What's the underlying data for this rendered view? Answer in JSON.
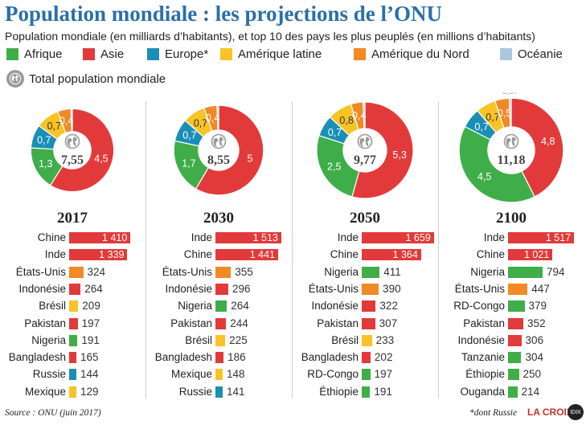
{
  "title": "Population mondiale : les projections de l’ONU",
  "subtitle": "Population mondiale (en milliards d’habitants), et top 10 des pays les plus peuplés (en millions d’habitants)",
  "legend": {
    "items": [
      {
        "label": "Afrique",
        "color": "#3fae49"
      },
      {
        "label": "Asie",
        "color": "#e23a3a"
      },
      {
        "label": "Europe*",
        "color": "#1a8fb5"
      },
      {
        "label": "Amérique latine",
        "color": "#f7c325"
      },
      {
        "label": "Amérique du Nord",
        "color": "#f08a24"
      },
      {
        "label": "Océanie",
        "color": "#a9c8de"
      }
    ],
    "total_label": "Total population mondiale",
    "total_icon": "globe-icon"
  },
  "chart_data": [
    {
      "type": "pie",
      "year": "2017",
      "total": "7,55",
      "slices": [
        {
          "region": "Asie",
          "value": 4.5,
          "label": "4,5"
        },
        {
          "region": "Afrique",
          "value": 1.3,
          "label": "1,3"
        },
        {
          "region": "Europe*",
          "value": 0.7,
          "label": "0,7"
        },
        {
          "region": "Amérique latine",
          "value": 0.7,
          "label": "0,7"
        },
        {
          "region": "Amérique du Nord",
          "value": 0.4,
          "label": "0,4"
        },
        {
          "region": "Océanie",
          "value": 0.04,
          "label": ""
        }
      ],
      "countries": [
        {
          "name": "Chine",
          "value": 1410,
          "label": "1 410",
          "region": "Asie"
        },
        {
          "name": "Inde",
          "value": 1339,
          "label": "1 339",
          "region": "Asie"
        },
        {
          "name": "États-Unis",
          "value": 324,
          "label": "324",
          "region": "Amérique du Nord"
        },
        {
          "name": "Indonésie",
          "value": 264,
          "label": "264",
          "region": "Asie"
        },
        {
          "name": "Brésil",
          "value": 209,
          "label": "209",
          "region": "Amérique latine"
        },
        {
          "name": "Pakistan",
          "value": 197,
          "label": "197",
          "region": "Asie"
        },
        {
          "name": "Nigeria",
          "value": 191,
          "label": "191",
          "region": "Afrique"
        },
        {
          "name": "Bangladesh",
          "value": 165,
          "label": "165",
          "region": "Asie"
        },
        {
          "name": "Russie",
          "value": 144,
          "label": "144",
          "region": "Europe*"
        },
        {
          "name": "Mexique",
          "value": 129,
          "label": "129",
          "region": "Amérique latine"
        }
      ]
    },
    {
      "type": "pie",
      "year": "2030",
      "total": "8,55",
      "slices": [
        {
          "region": "Asie",
          "value": 5.0,
          "label": "5"
        },
        {
          "region": "Afrique",
          "value": 1.7,
          "label": "1,7"
        },
        {
          "region": "Europe*",
          "value": 0.7,
          "label": "0,7"
        },
        {
          "region": "Amérique latine",
          "value": 0.7,
          "label": "0,7"
        },
        {
          "region": "Amérique du Nord",
          "value": 0.4,
          "label": "0,4"
        },
        {
          "region": "Océanie",
          "value": 0.05,
          "label": ""
        }
      ],
      "countries": [
        {
          "name": "Inde",
          "value": 1513,
          "label": "1 513",
          "region": "Asie"
        },
        {
          "name": "Chine",
          "value": 1441,
          "label": "1 441",
          "region": "Asie"
        },
        {
          "name": "États-Unis",
          "value": 355,
          "label": "355",
          "region": "Amérique du Nord"
        },
        {
          "name": "Indonésie",
          "value": 296,
          "label": "296",
          "region": "Asie"
        },
        {
          "name": "Nigeria",
          "value": 264,
          "label": "264",
          "region": "Afrique"
        },
        {
          "name": "Pakistan",
          "value": 244,
          "label": "244",
          "region": "Asie"
        },
        {
          "name": "Brésil",
          "value": 225,
          "label": "225",
          "region": "Amérique latine"
        },
        {
          "name": "Bangladesh",
          "value": 186,
          "label": "186",
          "region": "Asie"
        },
        {
          "name": "Mexique",
          "value": 148,
          "label": "148",
          "region": "Amérique latine"
        },
        {
          "name": "Russie",
          "value": 141,
          "label": "141",
          "region": "Europe*"
        }
      ]
    },
    {
      "type": "pie",
      "year": "2050",
      "total": "9,77",
      "slices": [
        {
          "region": "Asie",
          "value": 5.3,
          "label": "5,3"
        },
        {
          "region": "Afrique",
          "value": 2.5,
          "label": "2,5"
        },
        {
          "region": "Europe*",
          "value": 0.7,
          "label": "0,7"
        },
        {
          "region": "Amérique latine",
          "value": 0.8,
          "label": "0,8"
        },
        {
          "region": "Amérique du Nord",
          "value": 0.4,
          "label": "0,4"
        },
        {
          "region": "Océanie",
          "value": 0.06,
          "label": ""
        }
      ],
      "countries": [
        {
          "name": "Inde",
          "value": 1659,
          "label": "1 659",
          "region": "Asie"
        },
        {
          "name": "Chine",
          "value": 1364,
          "label": "1 364",
          "region": "Asie"
        },
        {
          "name": "Nigeria",
          "value": 411,
          "label": "411",
          "region": "Afrique"
        },
        {
          "name": "États-Unis",
          "value": 390,
          "label": "390",
          "region": "Amérique du Nord"
        },
        {
          "name": "Indonésie",
          "value": 322,
          "label": "322",
          "region": "Asie"
        },
        {
          "name": "Pakistan",
          "value": 307,
          "label": "307",
          "region": "Asie"
        },
        {
          "name": "Brésil",
          "value": 233,
          "label": "233",
          "region": "Amérique latine"
        },
        {
          "name": "Bangladesh",
          "value": 202,
          "label": "202",
          "region": "Asie"
        },
        {
          "name": "RD-Congo",
          "value": 197,
          "label": "197",
          "region": "Afrique"
        },
        {
          "name": "Éthiopie",
          "value": 191,
          "label": "191",
          "region": "Afrique"
        }
      ]
    },
    {
      "type": "pie",
      "year": "2100",
      "total": "11,18",
      "slices": [
        {
          "region": "Asie",
          "value": 4.8,
          "label": "4,8"
        },
        {
          "region": "Afrique",
          "value": 4.5,
          "label": "4,5"
        },
        {
          "region": "Europe*",
          "value": 0.7,
          "label": "0,7"
        },
        {
          "region": "Amérique latine",
          "value": 0.7,
          "label": "0,7"
        },
        {
          "region": "Amérique du Nord",
          "value": 0.5,
          "label": "0,5"
        },
        {
          "region": "Océanie",
          "value": 0.07,
          "label": "0,07"
        }
      ],
      "countries": [
        {
          "name": "Inde",
          "value": 1517,
          "label": "1 517",
          "region": "Asie"
        },
        {
          "name": "Chine",
          "value": 1021,
          "label": "1 021",
          "region": "Asie"
        },
        {
          "name": "Nigeria",
          "value": 794,
          "label": "794",
          "region": "Afrique"
        },
        {
          "name": "États-Unis",
          "value": 447,
          "label": "447",
          "region": "Amérique du Nord"
        },
        {
          "name": "RD-Congo",
          "value": 379,
          "label": "379",
          "region": "Afrique"
        },
        {
          "name": "Pakistan",
          "value": 352,
          "label": "352",
          "region": "Asie"
        },
        {
          "name": "Indonésie",
          "value": 306,
          "label": "306",
          "region": "Asie"
        },
        {
          "name": "Tanzanie",
          "value": 304,
          "label": "304",
          "region": "Afrique"
        },
        {
          "name": "Éthiopie",
          "value": 250,
          "label": "250",
          "region": "Afrique"
        },
        {
          "name": "Ouganda",
          "value": 214,
          "label": "214",
          "region": "Afrique"
        }
      ]
    }
  ],
  "footer": {
    "source": "Source : ONU (juin 2017)",
    "note": "*dont Russie",
    "logo": "LA CROIX",
    "badge": "IDIX"
  }
}
